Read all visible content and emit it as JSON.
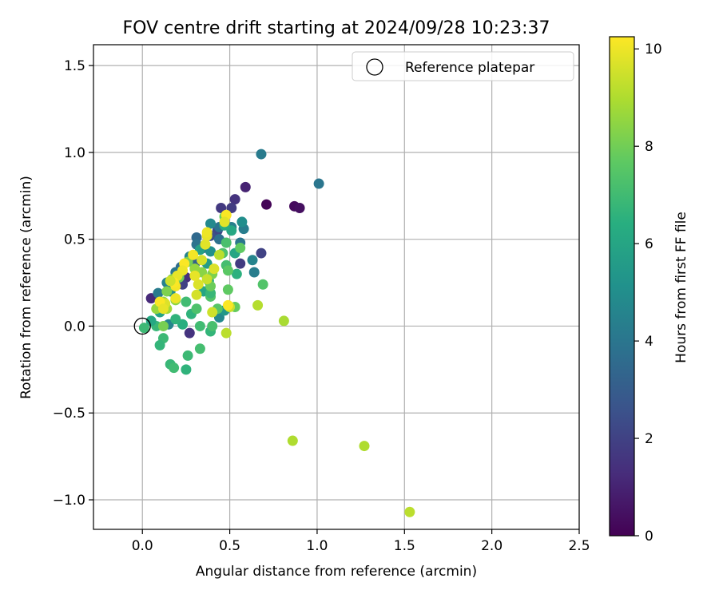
{
  "chart_data": {
    "type": "scatter",
    "title": "FOV centre drift starting at 2024/09/28 10:23:37",
    "xlabel": "Angular distance from reference (arcmin)",
    "ylabel": "Rotation from reference (arcmin)",
    "xlim": [
      -0.28,
      2.5
    ],
    "ylim": [
      -1.17,
      1.62
    ],
    "xticks": [
      0.0,
      0.5,
      1.0,
      1.5,
      2.0,
      2.5
    ],
    "xtick_labels": [
      "0.0",
      "0.5",
      "1.0",
      "1.5",
      "2.0",
      "2.5"
    ],
    "yticks": [
      -1.0,
      -0.5,
      0.0,
      0.5,
      1.0,
      1.5
    ],
    "ytick_labels": [
      "−1.0",
      "−0.5",
      "0.0",
      "0.5",
      "1.0",
      "1.5"
    ],
    "grid": true,
    "legend": {
      "position": "top-right",
      "entries": [
        {
          "label": "Reference platepar",
          "marker": "open-circle"
        }
      ]
    },
    "reference_point": {
      "x": 0.0,
      "y": 0.0
    },
    "colorbar": {
      "label": "Hours from first FF file",
      "colormap": "viridis",
      "range": [
        0,
        10.25
      ],
      "ticks": [
        0,
        2,
        4,
        6,
        8,
        10
      ],
      "tick_labels": [
        "0",
        "2",
        "4",
        "6",
        "8",
        "10"
      ]
    },
    "points": [
      {
        "x": 0.71,
        "y": 0.7,
        "c": 0.1
      },
      {
        "x": 0.87,
        "y": 0.69,
        "c": 0.3
      },
      {
        "x": 0.9,
        "y": 0.68,
        "c": 0.4
      },
      {
        "x": 0.59,
        "y": 0.8,
        "c": 1.0
      },
      {
        "x": 0.53,
        "y": 0.73,
        "c": 1.5
      },
      {
        "x": 0.45,
        "y": 0.68,
        "c": 1.7
      },
      {
        "x": 0.51,
        "y": 0.68,
        "c": 1.8
      },
      {
        "x": 0.68,
        "y": 0.42,
        "c": 2.0
      },
      {
        "x": 0.56,
        "y": 0.36,
        "c": 1.8
      },
      {
        "x": 0.43,
        "y": 0.55,
        "c": 2.2
      },
      {
        "x": 0.39,
        "y": 0.52,
        "c": 2.5
      },
      {
        "x": 0.35,
        "y": 0.45,
        "c": 2.8
      },
      {
        "x": 0.25,
        "y": 0.28,
        "c": 1.4
      },
      {
        "x": 0.23,
        "y": 0.24,
        "c": 2.0
      },
      {
        "x": 0.05,
        "y": 0.16,
        "c": 1.2
      },
      {
        "x": 0.15,
        "y": 0.24,
        "c": 2.4
      },
      {
        "x": 0.27,
        "y": -0.04,
        "c": 1.5
      },
      {
        "x": 0.68,
        "y": 0.99,
        "c": 4.2
      },
      {
        "x": 1.01,
        "y": 0.82,
        "c": 4.0
      },
      {
        "x": 0.58,
        "y": 0.56,
        "c": 4.3
      },
      {
        "x": 0.57,
        "y": 0.6,
        "c": 5.0
      },
      {
        "x": 0.63,
        "y": 0.38,
        "c": 4.6
      },
      {
        "x": 0.64,
        "y": 0.31,
        "c": 4.3
      },
      {
        "x": 0.56,
        "y": 0.48,
        "c": 4.0
      },
      {
        "x": 0.51,
        "y": 0.57,
        "c": 4.4
      },
      {
        "x": 0.44,
        "y": 0.5,
        "c": 3.8
      },
      {
        "x": 0.44,
        "y": 0.57,
        "c": 3.9
      },
      {
        "x": 0.39,
        "y": 0.59,
        "c": 4.8
      },
      {
        "x": 0.39,
        "y": 0.43,
        "c": 5.1
      },
      {
        "x": 0.31,
        "y": 0.51,
        "c": 3.5
      },
      {
        "x": 0.31,
        "y": 0.47,
        "c": 3.9
      },
      {
        "x": 0.27,
        "y": 0.4,
        "c": 4.6
      },
      {
        "x": 0.3,
        "y": 0.36,
        "c": 3.2
      },
      {
        "x": 0.22,
        "y": 0.34,
        "c": 3.6
      },
      {
        "x": 0.19,
        "y": 0.31,
        "c": 4.0
      },
      {
        "x": 0.14,
        "y": 0.25,
        "c": 4.5
      },
      {
        "x": 0.16,
        "y": 0.2,
        "c": 5.0
      },
      {
        "x": 0.09,
        "y": 0.19,
        "c": 4.2
      },
      {
        "x": 0.11,
        "y": 0.12,
        "c": 5.3
      },
      {
        "x": 0.15,
        "y": 0.01,
        "c": 4.6
      },
      {
        "x": 0.44,
        "y": 0.05,
        "c": 4.8
      },
      {
        "x": 0.47,
        "y": 0.09,
        "c": 5.4
      },
      {
        "x": 0.37,
        "y": 0.36,
        "c": 5.6
      },
      {
        "x": 0.33,
        "y": 0.44,
        "c": 5.8
      },
      {
        "x": 0.53,
        "y": 0.42,
        "c": 6.0
      },
      {
        "x": 0.51,
        "y": 0.55,
        "c": 6.1
      },
      {
        "x": 0.47,
        "y": 0.58,
        "c": 6.3
      },
      {
        "x": 0.54,
        "y": 0.3,
        "c": 6.5
      },
      {
        "x": 0.38,
        "y": 0.26,
        "c": 6.2
      },
      {
        "x": 0.35,
        "y": 0.2,
        "c": 6.0
      },
      {
        "x": 0.23,
        "y": 0.01,
        "c": 6.4
      },
      {
        "x": 0.19,
        "y": 0.04,
        "c": 6.6
      },
      {
        "x": 0.08,
        "y": 0.0,
        "c": 6.8
      },
      {
        "x": 0.05,
        "y": 0.03,
        "c": 6.1
      },
      {
        "x": 0.01,
        "y": -0.01,
        "c": 6.9
      },
      {
        "x": 0.1,
        "y": 0.08,
        "c": 5.9
      },
      {
        "x": 0.12,
        "y": -0.07,
        "c": 6.9
      },
      {
        "x": 0.1,
        "y": -0.11,
        "c": 6.7
      },
      {
        "x": 0.16,
        "y": -0.22,
        "c": 6.8
      },
      {
        "x": 0.18,
        "y": -0.24,
        "c": 7.0
      },
      {
        "x": 0.25,
        "y": -0.25,
        "c": 6.6
      },
      {
        "x": 0.26,
        "y": -0.17,
        "c": 6.9
      },
      {
        "x": 0.33,
        "y": -0.13,
        "c": 7.1
      },
      {
        "x": 0.39,
        "y": -0.03,
        "c": 6.7
      },
      {
        "x": 0.4,
        "y": 0.0,
        "c": 7.2
      },
      {
        "x": 0.28,
        "y": 0.07,
        "c": 6.6
      },
      {
        "x": 0.25,
        "y": 0.14,
        "c": 7.0
      },
      {
        "x": 0.31,
        "y": 0.1,
        "c": 7.3
      },
      {
        "x": 0.33,
        "y": 0.0,
        "c": 7.0
      },
      {
        "x": 0.39,
        "y": 0.17,
        "c": 7.4
      },
      {
        "x": 0.39,
        "y": 0.19,
        "c": 6.8
      },
      {
        "x": 0.43,
        "y": 0.1,
        "c": 7.5
      },
      {
        "x": 0.46,
        "y": 0.42,
        "c": 7.3
      },
      {
        "x": 0.48,
        "y": 0.35,
        "c": 7.1
      },
      {
        "x": 0.49,
        "y": 0.32,
        "c": 7.6
      },
      {
        "x": 0.49,
        "y": 0.21,
        "c": 7.7
      },
      {
        "x": 0.53,
        "y": 0.11,
        "c": 7.8
      },
      {
        "x": 0.56,
        "y": 0.45,
        "c": 7.7
      },
      {
        "x": 0.48,
        "y": 0.48,
        "c": 7.2
      },
      {
        "x": 0.47,
        "y": 0.63,
        "c": 7.9
      },
      {
        "x": 0.69,
        "y": 0.24,
        "c": 7.4
      },
      {
        "x": 0.39,
        "y": 0.23,
        "c": 7.9
      },
      {
        "x": 0.4,
        "y": 0.3,
        "c": 8.2
      },
      {
        "x": 0.34,
        "y": 0.31,
        "c": 8.4
      },
      {
        "x": 0.3,
        "y": 0.33,
        "c": 8.6
      },
      {
        "x": 0.26,
        "y": 0.37,
        "c": 8.1
      },
      {
        "x": 0.21,
        "y": 0.28,
        "c": 8.0
      },
      {
        "x": 0.17,
        "y": 0.27,
        "c": 8.3
      },
      {
        "x": 0.14,
        "y": 0.2,
        "c": 8.2
      },
      {
        "x": 0.12,
        "y": 0.14,
        "c": 8.5
      },
      {
        "x": 0.08,
        "y": 0.1,
        "c": 8.6
      },
      {
        "x": 0.12,
        "y": 0.0,
        "c": 8.1
      },
      {
        "x": 0.14,
        "y": 0.1,
        "c": 8.8
      },
      {
        "x": 0.19,
        "y": 0.15,
        "c": 8.4
      },
      {
        "x": 0.44,
        "y": 0.41,
        "c": 9.2
      },
      {
        "x": 0.5,
        "y": 0.11,
        "c": 9.4
      },
      {
        "x": 0.48,
        "y": -0.04,
        "c": 9.2
      },
      {
        "x": 0.66,
        "y": 0.12,
        "c": 9.1
      },
      {
        "x": 0.81,
        "y": 0.03,
        "c": 8.9
      },
      {
        "x": 0.86,
        "y": -0.66,
        "c": 9.0
      },
      {
        "x": 1.27,
        "y": -0.69,
        "c": 9.0
      },
      {
        "x": 1.53,
        "y": -1.07,
        "c": 9.2
      },
      {
        "x": 0.4,
        "y": 0.08,
        "c": 9.5
      },
      {
        "x": 0.37,
        "y": 0.27,
        "c": 9.4
      },
      {
        "x": 0.31,
        "y": 0.18,
        "c": 9.6
      },
      {
        "x": 0.32,
        "y": 0.24,
        "c": 9.7
      },
      {
        "x": 0.3,
        "y": 0.29,
        "c": 9.9
      },
      {
        "x": 0.34,
        "y": 0.38,
        "c": 9.6
      },
      {
        "x": 0.36,
        "y": 0.47,
        "c": 9.8
      },
      {
        "x": 0.37,
        "y": 0.52,
        "c": 9.9
      },
      {
        "x": 0.37,
        "y": 0.54,
        "c": 10.0
      },
      {
        "x": 0.41,
        "y": 0.33,
        "c": 9.7
      },
      {
        "x": 0.48,
        "y": 0.64,
        "c": 10.2
      },
      {
        "x": 0.47,
        "y": 0.6,
        "c": 9.8
      },
      {
        "x": 0.29,
        "y": 0.41,
        "c": 10.1
      },
      {
        "x": 0.24,
        "y": 0.36,
        "c": 10.2
      },
      {
        "x": 0.23,
        "y": 0.32,
        "c": 10.0
      },
      {
        "x": 0.2,
        "y": 0.29,
        "c": 9.9
      },
      {
        "x": 0.19,
        "y": 0.23,
        "c": 10.1
      },
      {
        "x": 0.18,
        "y": 0.25,
        "c": 10.2
      },
      {
        "x": 0.16,
        "y": 0.26,
        "c": 9.5
      },
      {
        "x": 0.19,
        "y": 0.16,
        "c": 10.0
      },
      {
        "x": 0.13,
        "y": 0.13,
        "c": 9.7
      },
      {
        "x": 0.1,
        "y": 0.14,
        "c": 10.2
      },
      {
        "x": 0.12,
        "y": 0.1,
        "c": 9.9
      },
      {
        "x": 0.49,
        "y": 0.12,
        "c": 10.2
      }
    ]
  }
}
